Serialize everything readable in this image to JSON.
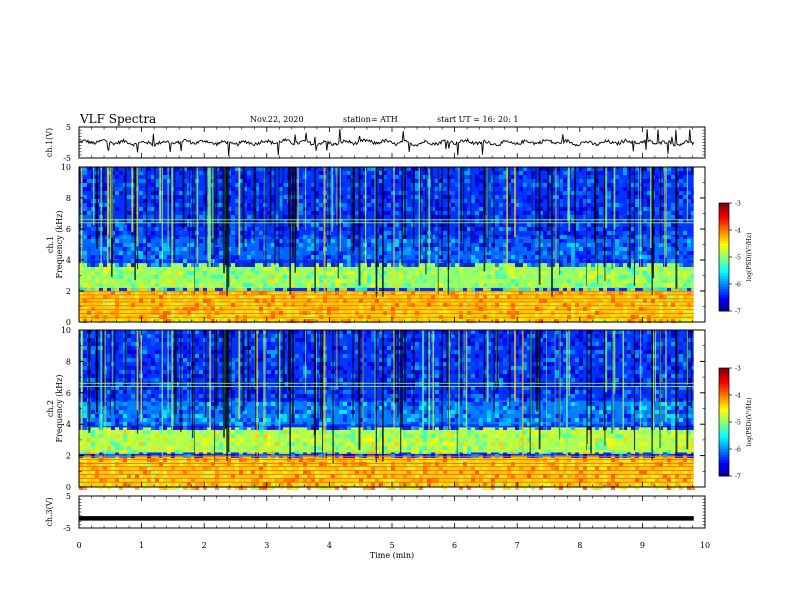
{
  "header": {
    "title": "VLF Spectra",
    "date": "Nov.22, 2020",
    "station": "station= ATH",
    "start": "start  UT =   16: 20: 1"
  },
  "chart_data": [
    {
      "type": "line",
      "panel": "ch1-waveform",
      "ylabel": "ch.1(V)",
      "ylim": [
        -5,
        5
      ],
      "yticks": [
        "5",
        "-5"
      ],
      "xlim": [
        0,
        10
      ],
      "trace": "noisy waveform near 0 V with sparse impulsive spikes"
    },
    {
      "type": "heatmap",
      "panel": "ch1-spectrogram",
      "ylabel": "Frequency (kHz)",
      "channel_label": "ch.1",
      "ylim": [
        0,
        10
      ],
      "yticks": [
        "0",
        "2",
        "4",
        "6",
        "8",
        "10"
      ],
      "xlim": [
        0,
        10
      ],
      "colorbar": {
        "label": "log(PSD)(V²/Hz)",
        "range": [
          -7,
          -3
        ],
        "ticks": [
          "-3",
          "-4",
          "-5",
          "-6",
          "-7"
        ]
      },
      "features": [
        {
          "band_khz": [
            0,
            2
          ],
          "level": -4.3
        },
        {
          "band_khz": [
            2.2,
            3.8
          ],
          "level": -4.9
        },
        {
          "band_khz": [
            4,
            5.5
          ],
          "level": -6.1
        },
        {
          "band_khz": [
            5.5,
            10
          ],
          "level": -6.3
        }
      ]
    },
    {
      "type": "heatmap",
      "panel": "ch2-spectrogram",
      "ylabel": "Frequency (kHz)",
      "channel_label": "ch.2",
      "ylim": [
        0,
        10
      ],
      "yticks": [
        "0",
        "2",
        "4",
        "6",
        "8",
        "10"
      ],
      "xlim": [
        0,
        10
      ],
      "colorbar": {
        "label": "log(PSD)(V²/Hz)",
        "range": [
          -7,
          -3
        ],
        "ticks": [
          "-3",
          "-4",
          "-5",
          "-6",
          "-7"
        ]
      },
      "features": [
        {
          "band_khz": [
            0,
            2
          ],
          "level": -4.3
        },
        {
          "band_khz": [
            2.2,
            3.8
          ],
          "level": -4.8
        },
        {
          "band_khz": [
            4,
            5.5
          ],
          "level": -6.0
        },
        {
          "band_khz": [
            5.5,
            10
          ],
          "level": -6.3
        }
      ]
    },
    {
      "type": "line",
      "panel": "ch3-waveform",
      "ylabel": "ch.3(V)",
      "ylim": [
        -5,
        5
      ],
      "yticks": [
        "5",
        "-5"
      ],
      "xlim": [
        0,
        10
      ],
      "trace": "flat thick line at about -2 V"
    }
  ],
  "xaxis": {
    "label": "Time  (min)",
    "ticks": [
      "0",
      "1",
      "2",
      "3",
      "4",
      "5",
      "6",
      "7",
      "8",
      "9",
      "10"
    ],
    "range": [
      0,
      10
    ],
    "data_end": 9.82
  }
}
